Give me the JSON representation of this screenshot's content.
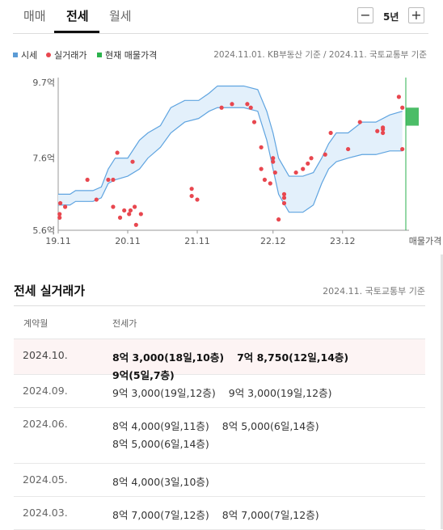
{
  "tabs": [
    {
      "label": "매매",
      "active": false
    },
    {
      "label": "전세",
      "active": true
    },
    {
      "label": "월세",
      "active": false
    }
  ],
  "period": {
    "minus": "−",
    "value": "5년",
    "plus": "+"
  },
  "legend": {
    "items": [
      {
        "label": "시세",
        "color": "#5b9bd5",
        "icon": "square"
      },
      {
        "label": "실거래가",
        "color": "#e8474f",
        "icon": "dot"
      },
      {
        "label": "현재 매물가격",
        "color": "#2bb24c",
        "icon": "square"
      }
    ],
    "source": "2024.11.01. KB부동산 기준 / 2024.11. 국토교통부 기준"
  },
  "chart_data": {
    "type": "line",
    "title": "",
    "ylim": [
      5.6,
      9.7
    ],
    "y_ticks": [
      {
        "value": 5.6,
        "label": "5.6억"
      },
      {
        "value": 7.6,
        "label": "7.6억"
      },
      {
        "value": 9.7,
        "label": "9.7억"
      }
    ],
    "x_ticks": [
      {
        "value": 2019.83,
        "label": "19.11"
      },
      {
        "value": 2020.83,
        "label": "20.11"
      },
      {
        "value": 2021.83,
        "label": "21.11"
      },
      {
        "value": 2022.92,
        "label": "22.12"
      },
      {
        "value": 2023.92,
        "label": "23.12"
      }
    ],
    "x_end_label": "매물가격",
    "xlim": [
      2019.83,
      2024.83
    ],
    "colors": {
      "band_fill": "#e3f0fb",
      "band_line": "#5fa4e0",
      "transaction": "#e8474f",
      "listing": "#2bb24c",
      "axis": "#999999"
    },
    "series": [
      {
        "name": "시세",
        "kind": "band",
        "upper": [
          [
            2019.83,
            6.6
          ],
          [
            2020.0,
            6.6
          ],
          [
            2020.08,
            6.7
          ],
          [
            2020.33,
            6.7
          ],
          [
            2020.45,
            6.8
          ],
          [
            2020.55,
            7.3
          ],
          [
            2020.65,
            7.6
          ],
          [
            2020.83,
            7.6
          ],
          [
            2021.0,
            8.1
          ],
          [
            2021.12,
            8.3
          ],
          [
            2021.3,
            8.5
          ],
          [
            2021.45,
            9.0
          ],
          [
            2021.65,
            9.2
          ],
          [
            2021.85,
            9.2
          ],
          [
            2022.0,
            9.4
          ],
          [
            2022.12,
            9.6
          ],
          [
            2022.5,
            9.6
          ],
          [
            2022.7,
            9.5
          ],
          [
            2022.83,
            8.9
          ],
          [
            2022.92,
            8.3
          ],
          [
            2023.0,
            7.6
          ],
          [
            2023.15,
            7.1
          ],
          [
            2023.35,
            7.1
          ],
          [
            2023.5,
            7.2
          ],
          [
            2023.62,
            7.6
          ],
          [
            2023.72,
            8.0
          ],
          [
            2023.83,
            8.3
          ],
          [
            2024.0,
            8.3
          ],
          [
            2024.2,
            8.6
          ],
          [
            2024.4,
            8.6
          ],
          [
            2024.6,
            8.8
          ],
          [
            2024.78,
            8.9
          ]
        ],
        "lower": [
          [
            2019.83,
            6.3
          ],
          [
            2020.0,
            6.3
          ],
          [
            2020.08,
            6.4
          ],
          [
            2020.33,
            6.4
          ],
          [
            2020.45,
            6.5
          ],
          [
            2020.55,
            6.9
          ],
          [
            2020.65,
            7.0
          ],
          [
            2020.83,
            7.1
          ],
          [
            2021.0,
            7.3
          ],
          [
            2021.12,
            7.6
          ],
          [
            2021.3,
            7.9
          ],
          [
            2021.45,
            8.3
          ],
          [
            2021.65,
            8.6
          ],
          [
            2021.85,
            8.7
          ],
          [
            2022.0,
            8.9
          ],
          [
            2022.12,
            9.0
          ],
          [
            2022.5,
            9.0
          ],
          [
            2022.7,
            8.9
          ],
          [
            2022.83,
            8.1
          ],
          [
            2022.92,
            7.3
          ],
          [
            2023.0,
            6.6
          ],
          [
            2023.15,
            6.1
          ],
          [
            2023.35,
            6.1
          ],
          [
            2023.5,
            6.3
          ],
          [
            2023.62,
            6.9
          ],
          [
            2023.72,
            7.3
          ],
          [
            2023.83,
            7.5
          ],
          [
            2024.0,
            7.6
          ],
          [
            2024.2,
            7.7
          ],
          [
            2024.4,
            7.7
          ],
          [
            2024.6,
            7.8
          ],
          [
            2024.78,
            7.8
          ]
        ]
      },
      {
        "name": "실거래가",
        "kind": "points",
        "points": [
          [
            2019.85,
            5.95
          ],
          [
            2019.85,
            6.05
          ],
          [
            2019.86,
            6.35
          ],
          [
            2019.93,
            6.25
          ],
          [
            2020.25,
            7.0
          ],
          [
            2020.38,
            6.45
          ],
          [
            2020.55,
            7.0
          ],
          [
            2020.62,
            7.0
          ],
          [
            2020.68,
            7.75
          ],
          [
            2020.62,
            6.25
          ],
          [
            2020.72,
            5.95
          ],
          [
            2020.78,
            6.15
          ],
          [
            2020.85,
            6.05
          ],
          [
            2020.87,
            6.15
          ],
          [
            2020.9,
            7.5
          ],
          [
            2020.93,
            6.25
          ],
          [
            2020.95,
            5.75
          ],
          [
            2021.02,
            6.05
          ],
          [
            2021.75,
            6.75
          ],
          [
            2021.75,
            6.55
          ],
          [
            2021.83,
            6.45
          ],
          [
            2022.18,
            9.0
          ],
          [
            2022.33,
            9.1
          ],
          [
            2022.55,
            9.1
          ],
          [
            2022.6,
            9.0
          ],
          [
            2022.65,
            8.6
          ],
          [
            2022.75,
            7.9
          ],
          [
            2022.75,
            7.3
          ],
          [
            2022.8,
            7.0
          ],
          [
            2022.88,
            6.9
          ],
          [
            2022.92,
            7.5
          ],
          [
            2022.92,
            7.6
          ],
          [
            2022.95,
            7.2
          ],
          [
            2023.0,
            5.9
          ],
          [
            2023.08,
            6.35
          ],
          [
            2023.08,
            6.5
          ],
          [
            2023.08,
            6.6
          ],
          [
            2023.25,
            7.2
          ],
          [
            2023.35,
            7.3
          ],
          [
            2023.42,
            7.45
          ],
          [
            2023.47,
            7.6
          ],
          [
            2023.67,
            7.7
          ],
          [
            2023.75,
            8.3
          ],
          [
            2024.0,
            7.85
          ],
          [
            2024.17,
            8.6
          ],
          [
            2024.42,
            8.35
          ],
          [
            2024.5,
            8.4
          ],
          [
            2024.5,
            8.45
          ],
          [
            2024.5,
            8.3
          ],
          [
            2024.73,
            9.3
          ],
          [
            2024.78,
            9.0
          ],
          [
            2024.78,
            7.85
          ]
        ]
      },
      {
        "name": "현재 매물가격",
        "kind": "range",
        "x": 2024.83,
        "low": 8.5,
        "high": 9.0
      }
    ]
  },
  "section": {
    "title": "전세 실거래가",
    "source": "2024.11. 국토교통부 기준"
  },
  "table": {
    "headers": [
      "계약월",
      "전세가"
    ],
    "rows": [
      {
        "month": "2024.10.",
        "highlight": true,
        "deals": [
          "8억 3,000(18일,10층)",
          "7억 8,750(12일,14층)",
          "9억(5일,7층)"
        ]
      },
      {
        "month": "2024.09.",
        "highlight": false,
        "deals": [
          "9억 3,000(19일,12층)",
          "9억 3,000(19일,12층)"
        ]
      },
      {
        "month": "2024.06.",
        "highlight": false,
        "deals": [
          "8억 4,000(9일,11층)",
          "8억 5,000(6일,14층)",
          "8억 5,000(6일,14층)"
        ]
      },
      {
        "month": "2024.05.",
        "highlight": false,
        "deals": [
          "8억 4,000(3일,10층)"
        ]
      },
      {
        "month": "2024.03.",
        "highlight": false,
        "deals": [
          "8억 7,000(7일,12층)",
          "8억 7,000(7일,12층)"
        ]
      }
    ]
  }
}
